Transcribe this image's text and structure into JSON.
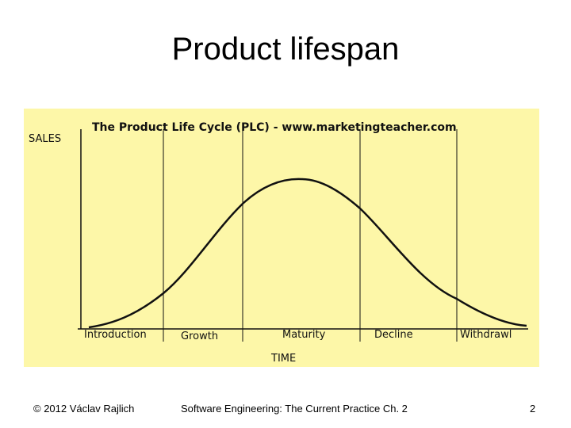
{
  "slide": {
    "title": "Product lifespan",
    "footer_left": "© 2012 Václav Rajlich",
    "footer_center": "Software Engineering: The Current Practice   Ch. 2",
    "page_number": "2"
  },
  "diagram": {
    "heading": "The Product Life Cycle (PLC) - www.marketingteacher.com",
    "y_label": "SALES",
    "x_label": "TIME",
    "stages": [
      "Introduction",
      "Growth",
      "Maturity",
      "Decline",
      "Withdrawl"
    ],
    "background_color": "#fdf7a8",
    "line_color": "#000000"
  }
}
